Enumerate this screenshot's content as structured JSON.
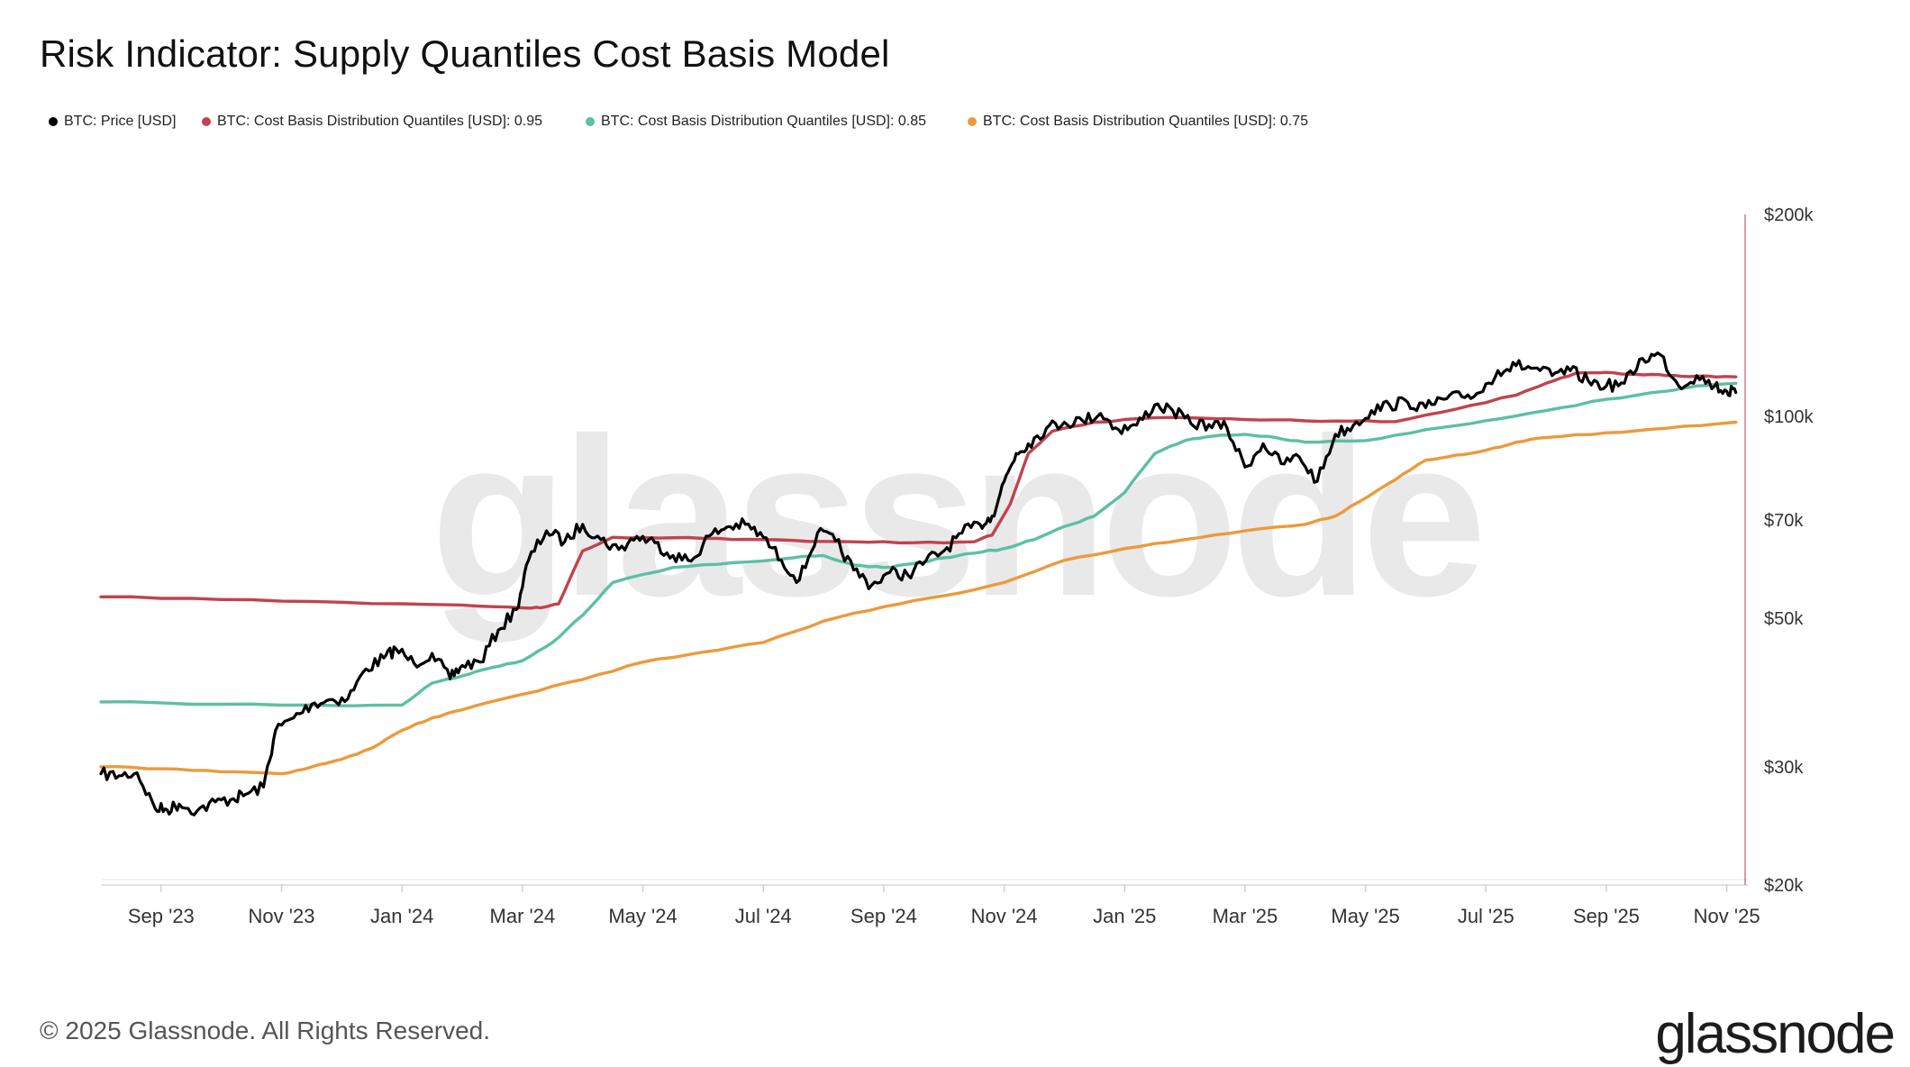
{
  "title": "Risk Indicator: Supply Quantiles Cost Basis Model",
  "footer": "© 2025 Glassnode. All Rights Reserved.",
  "logo": "glassnode",
  "watermark": "glassnode",
  "colors": {
    "price": "#000000",
    "q95": "#c0434f",
    "q85": "#5dbfa4",
    "q75": "#ec9a3c",
    "axis_line": "#c0434f"
  },
  "chart_data": {
    "type": "line",
    "title": "Risk Indicator: Supply Quantiles Cost Basis Model",
    "yscale": "log",
    "ylim": [
      20000,
      200000
    ],
    "x_range": [
      "2023-08-01",
      "2025-11-06"
    ],
    "legend_position": "top-left",
    "x_tick_labels": [
      "Sep '23",
      "Nov '23",
      "Jan '24",
      "Mar '24",
      "May '24",
      "Jul '24",
      "Sep '24",
      "Nov '24",
      "Jan '25",
      "Mar '25",
      "May '25",
      "Jul '25",
      "Sep '25",
      "Nov '25"
    ],
    "x_tick_months": [
      1,
      3,
      5,
      7,
      9,
      11,
      13,
      15,
      17,
      19,
      21,
      23,
      25,
      27
    ],
    "y_tick_labels": [
      "$20k",
      "$30k",
      "$50k",
      "$70k",
      "$100k",
      "$200k"
    ],
    "y_tick_values": [
      20000,
      30000,
      50000,
      70000,
      100000,
      200000
    ],
    "series": [
      {
        "name": "BTC: Price [USD]",
        "color": "#000000",
        "t": [
          0,
          0.3,
          0.6,
          0.9,
          1.1,
          1.3,
          1.6,
          1.9,
          2.2,
          2.4,
          2.7,
          2.9,
          3.2,
          3.5,
          3.8,
          4.1,
          4.4,
          4.7,
          4.9,
          5.2,
          5.5,
          5.8,
          6.0,
          6.3,
          6.6,
          6.9,
          7.1,
          7.4,
          7.7,
          8.0,
          8.3,
          8.6,
          8.9,
          9.2,
          9.5,
          9.8,
          10.1,
          10.4,
          10.7,
          11.0,
          11.3,
          11.6,
          11.9,
          12.2,
          12.5,
          12.8,
          13.1,
          13.4,
          13.7,
          14.0,
          14.3,
          14.6,
          14.8,
          15.0,
          15.2,
          15.4,
          15.7,
          16.0,
          16.3,
          16.6,
          16.9,
          17.2,
          17.5,
          17.8,
          18.1,
          18.4,
          18.7,
          19.0,
          19.3,
          19.6,
          19.9,
          20.2,
          20.5,
          20.8,
          21.1,
          21.4,
          21.7,
          22.0,
          22.3,
          22.6,
          22.9,
          23.2,
          23.5,
          23.8,
          24.1,
          24.4,
          24.7,
          25.0,
          25.3,
          25.6,
          25.9,
          26.2,
          26.5,
          26.8,
          27.0,
          27.15
        ],
        "values": [
          29300,
          29100,
          29400,
          26000,
          25900,
          26400,
          25800,
          26600,
          26900,
          27300,
          28000,
          34000,
          35500,
          37200,
          37800,
          37900,
          42000,
          43600,
          45000,
          42800,
          44300,
          40600,
          42500,
          43000,
          48000,
          51500,
          61000,
          67500,
          65000,
          69000,
          65500,
          63300,
          66200,
          64800,
          62000,
          60800,
          66300,
          68400,
          69000,
          66000,
          61000,
          57000,
          67000,
          65200,
          59000,
          56000,
          58500,
          58000,
          60900,
          63000,
          67000,
          69000,
          71000,
          80000,
          88000,
          91000,
          96000,
          98000,
          98500,
          101000,
          95500,
          97000,
          104000,
          102000,
          97500,
          97200,
          96100,
          84000,
          91000,
          85000,
          87000,
          80000,
          94000,
          97000,
          102000,
          104000,
          105000,
          103000,
          106000,
          107000,
          108500,
          117000,
          119000,
          118000,
          115000,
          117000,
          113000,
          111000,
          112000,
          122000,
          123500,
          111000,
          115000,
          111000,
          109000,
          108500
        ]
      },
      {
        "name": "BTC: Cost Basis Distribution Quantiles [USD]: 0.95",
        "color": "#c0434f",
        "t": [
          0,
          2,
          4,
          6,
          7.0,
          7.3,
          7.6,
          8.0,
          8.5,
          9.5,
          10.5,
          11.5,
          12.5,
          13.5,
          14.5,
          14.8,
          15.1,
          15.4,
          15.8,
          16.5,
          17.5,
          18.5,
          19.5,
          20.5,
          21.5,
          22.5,
          23.5,
          24.0,
          24.5,
          25.0,
          25.5,
          26.0,
          26.5,
          27.15
        ],
        "values": [
          53800,
          53300,
          52800,
          52300,
          51800,
          51800,
          52500,
          63000,
          66000,
          65900,
          65500,
          65300,
          65000,
          64800,
          65000,
          66500,
          74000,
          88000,
          95000,
          98000,
          99500,
          99200,
          98800,
          98400,
          98200,
          102500,
          107500,
          112000,
          116000,
          116300,
          115500,
          115000,
          114800,
          114500
        ]
      },
      {
        "name": "BTC: Cost Basis Distribution Quantiles [USD]: 0.85",
        "color": "#5dbfa4",
        "t": [
          0,
          2,
          4,
          5.0,
          5.5,
          6.0,
          6.5,
          7.0,
          7.5,
          8.0,
          8.5,
          9.5,
          10.5,
          11.5,
          12.0,
          12.5,
          13.0,
          13.5,
          14.0,
          14.5,
          15.0,
          15.5,
          16.0,
          16.5,
          17.0,
          17.5,
          18.0,
          18.5,
          19.0,
          19.5,
          20.0,
          21.0,
          22.0,
          23.0,
          24.0,
          25.0,
          26.0,
          26.5,
          27.15
        ],
        "values": [
          37500,
          37200,
          37000,
          37100,
          40000,
          41000,
          42200,
          43200,
          46000,
          50500,
          56500,
          59500,
          60500,
          61500,
          62000,
          60000,
          59500,
          60300,
          61500,
          62500,
          63500,
          65500,
          68500,
          71000,
          77000,
          88000,
          92000,
          93500,
          94000,
          93000,
          91500,
          92000,
          95500,
          98500,
          102000,
          106000,
          109000,
          111000,
          112000
        ]
      },
      {
        "name": "BTC: Cost Basis Distribution Quantiles [USD]: 0.75",
        "color": "#ec9a3c",
        "t": [
          0,
          1,
          2,
          3.0,
          3.5,
          4.0,
          4.5,
          5.0,
          5.5,
          6.0,
          7.0,
          8.0,
          9.0,
          10.0,
          11.0,
          12.0,
          13.0,
          14.0,
          15.0,
          16.0,
          17.0,
          18.0,
          19.0,
          20.0,
          20.5,
          21.0,
          21.5,
          22.0,
          22.5,
          23.0,
          23.5,
          24.0,
          25.0,
          26.0,
          27.15
        ],
        "values": [
          30000,
          29800,
          29500,
          29300,
          30000,
          30800,
          32000,
          34000,
          35500,
          36500,
          38500,
          40500,
          43000,
          44500,
          46000,
          49500,
          52000,
          54000,
          56500,
          61000,
          63500,
          65500,
          67500,
          69000,
          71000,
          75500,
          80500,
          86000,
          87500,
          89000,
          91500,
          93000,
          94500,
          96000,
          98000
        ]
      }
    ]
  },
  "legend": [
    {
      "label": "BTC: Price [USD]",
      "color": "#000000"
    },
    {
      "label": "BTC: Cost Basis Distribution Quantiles [USD]: 0.95",
      "color": "#c0434f"
    },
    {
      "label": "BTC: Cost Basis Distribution Quantiles [USD]: 0.85",
      "color": "#5dbfa4"
    },
    {
      "label": "BTC: Cost Basis Distribution Quantiles [USD]: 0.75",
      "color": "#ec9a3c"
    }
  ]
}
